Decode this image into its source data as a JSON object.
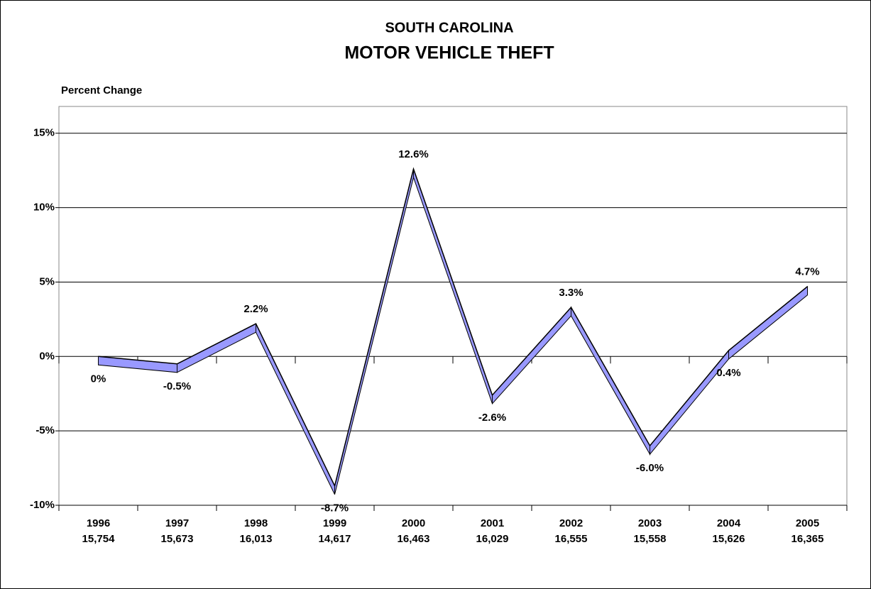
{
  "chart_data": {
    "type": "line",
    "title": "SOUTH CAROLINA",
    "subtitle": "MOTOR VEHICLE THEFT",
    "y_label": "Percent Change",
    "categories": [
      "1996",
      "1997",
      "1998",
      "1999",
      "2000",
      "2001",
      "2002",
      "2003",
      "2004",
      "2005"
    ],
    "category_sublabels": [
      "15,754",
      "15,673",
      "16,013",
      "14,617",
      "16,463",
      "16,029",
      "16,555",
      "15,558",
      "15,626",
      "16,365"
    ],
    "values": [
      0,
      -0.5,
      2.2,
      -8.7,
      12.6,
      -2.6,
      3.3,
      -6.0,
      0.4,
      4.7
    ],
    "value_labels": [
      "0%",
      "-0.5%",
      "2.2%",
      "-8.7%",
      "12.6%",
      "-2.6%",
      "3.3%",
      "-6.0%",
      "0.4%",
      "4.7%"
    ],
    "color": "#9999ff",
    "ylim": [
      -10,
      16.8
    ],
    "yticks": [
      {
        "value": -10,
        "label": "-10%"
      },
      {
        "value": -5,
        "label": "-5%"
      },
      {
        "value": 0,
        "label": "0%"
      },
      {
        "value": 5,
        "label": "5%"
      },
      {
        "value": 10,
        "label": "10%"
      },
      {
        "value": 15,
        "label": "15%"
      }
    ],
    "grid": true
  }
}
